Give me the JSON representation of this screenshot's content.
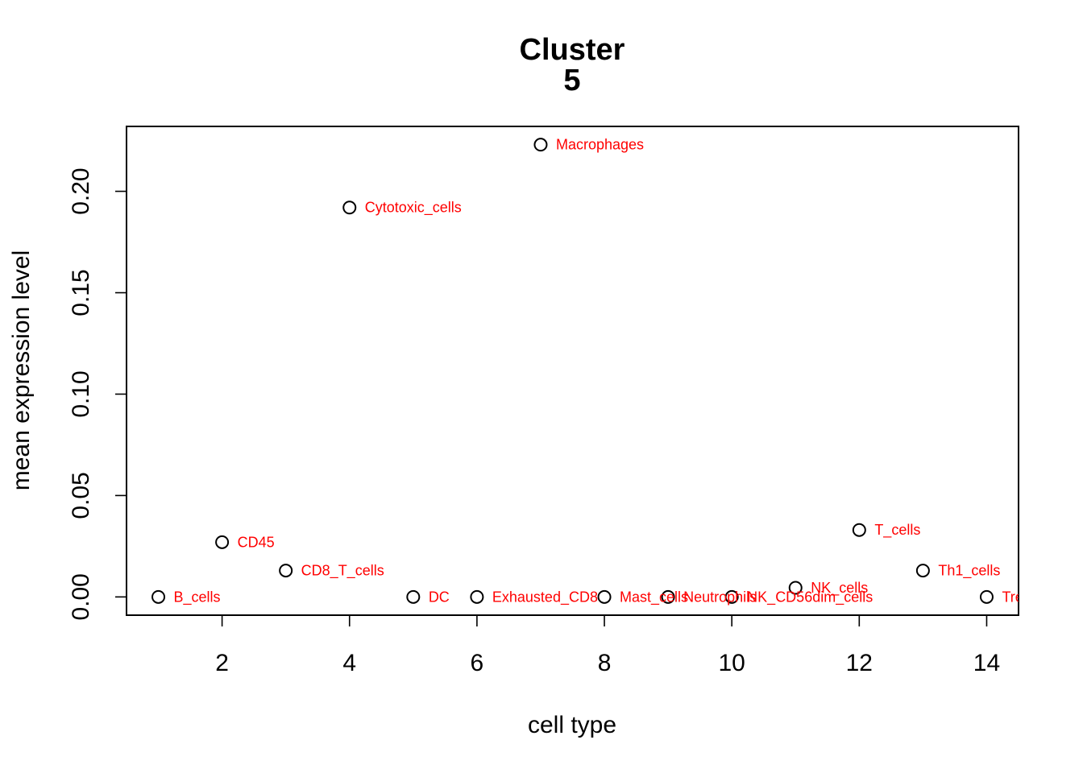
{
  "chart_data": {
    "type": "scatter",
    "title_lines": [
      "Cluster",
      "5"
    ],
    "xlabel": "cell type",
    "ylabel": "mean expression level",
    "xlim": [
      0.5,
      14.5
    ],
    "ylim": [
      -0.009,
      0.232
    ],
    "x_ticks": [
      2,
      4,
      6,
      8,
      10,
      12,
      14
    ],
    "y_ticks": [
      0.0,
      0.05,
      0.1,
      0.15,
      0.2
    ],
    "y_tick_labels": [
      "0.00",
      "0.05",
      "0.10",
      "0.15",
      "0.20"
    ],
    "label_color": "#ff0000",
    "points": [
      {
        "x": 1,
        "y": 0.0,
        "label": "B_cells"
      },
      {
        "x": 2,
        "y": 0.027,
        "label": "CD45"
      },
      {
        "x": 3,
        "y": 0.013,
        "label": "CD8_T_cells"
      },
      {
        "x": 4,
        "y": 0.192,
        "label": "Cytotoxic_cells"
      },
      {
        "x": 5,
        "y": 0.0,
        "label": "DC"
      },
      {
        "x": 6,
        "y": 0.0,
        "label": "Exhausted_CD8"
      },
      {
        "x": 7,
        "y": 0.223,
        "label": "Macrophages"
      },
      {
        "x": 8,
        "y": 0.0,
        "label": "Mast_cells"
      },
      {
        "x": 9,
        "y": 0.0,
        "label": "Neutrophils"
      },
      {
        "x": 10,
        "y": 0.0,
        "label": "NK_CD56dim_cells"
      },
      {
        "x": 11,
        "y": 0.0045,
        "label": "NK_cells"
      },
      {
        "x": 12,
        "y": 0.033,
        "label": "T_cells"
      },
      {
        "x": 13,
        "y": 0.013,
        "label": "Th1_cells"
      },
      {
        "x": 14,
        "y": 0.0,
        "label": "Treg"
      }
    ]
  }
}
